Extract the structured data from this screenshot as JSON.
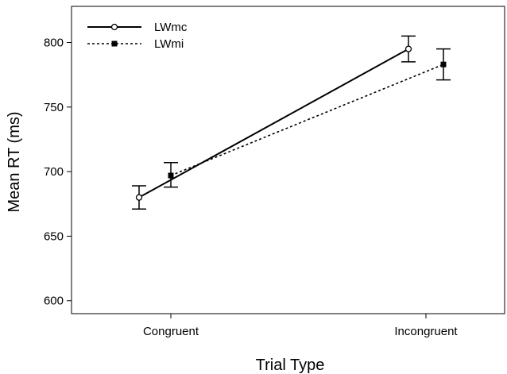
{
  "chart_data": {
    "type": "line",
    "xlabel": "Trial Type",
    "ylabel": "Mean RT (ms)",
    "categories": [
      "Congruent",
      "Incongruent"
    ],
    "ylim": [
      590,
      828
    ],
    "yticks": [
      600,
      650,
      700,
      750,
      800
    ],
    "grid": false,
    "legend_position": "top-left",
    "series": [
      {
        "name": "LWmc",
        "values": [
          680,
          795
        ],
        "error_low": [
          671,
          785
        ],
        "error_high": [
          689,
          805
        ],
        "marker": "open-circle",
        "line_style": "solid",
        "color": "#000000"
      },
      {
        "name": "LWmi",
        "values": [
          697,
          783
        ],
        "error_low": [
          688,
          771
        ],
        "error_high": [
          707,
          795
        ],
        "marker": "filled-square",
        "line_style": "dotted",
        "color": "#000000"
      }
    ]
  }
}
